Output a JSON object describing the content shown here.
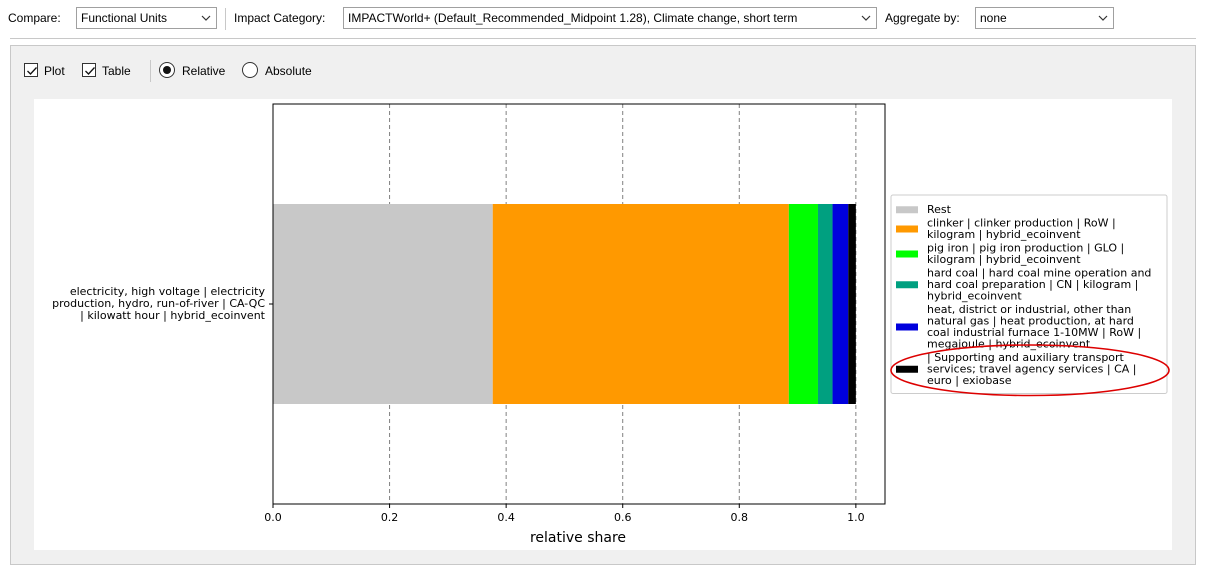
{
  "toolbar": {
    "compare_label": "Compare:",
    "compare_value": "Functional Units",
    "impact_label": "Impact Category:",
    "impact_value": "IMPACTWorld+ (Default_Recommended_Midpoint 1.28), Climate change, short term",
    "aggregate_label": "Aggregate by:",
    "aggregate_value": "none"
  },
  "options": {
    "plot_label": "Plot",
    "plot_checked": true,
    "table_label": "Table",
    "table_checked": true,
    "relative_label": "Relative",
    "absolute_label": "Absolute",
    "selected_mode": "Relative"
  },
  "chart_data": {
    "type": "bar",
    "orientation": "horizontal",
    "stacked": true,
    "xlabel": "relative share",
    "xlim": [
      0,
      1.05
    ],
    "xticks": [
      "0.0",
      "0.2",
      "0.4",
      "0.6",
      "0.8",
      "1.0"
    ],
    "grid": "vertical dashed",
    "legend_placement": "right",
    "category_label": [
      "electricity, high voltage | electricity",
      "production, hydro, run-of-river | CA-QC",
      "| kilowatt hour | hybrid_ecoinvent"
    ],
    "series": [
      {
        "name": "Rest",
        "value": 0.377,
        "color": "#c8c8c8",
        "legend_lines": [
          "Rest"
        ]
      },
      {
        "name": "clinker | clinker production | RoW | kilogram | hybrid_ecoinvent",
        "value": 0.508,
        "color": "#ff9900",
        "legend_lines": [
          "clinker | clinker production | RoW |",
          "kilogram | hybrid_ecoinvent"
        ]
      },
      {
        "name": "pig iron | pig iron production | GLO | kilogram | hybrid_ecoinvent",
        "value": 0.05,
        "color": "#00ff00",
        "legend_lines": [
          "pig iron | pig iron production | GLO |",
          "kilogram | hybrid_ecoinvent"
        ]
      },
      {
        "name": "hard coal | hard coal mine operation and hard coal preparation | CN | kilogram | hybrid_ecoinvent",
        "value": 0.025,
        "color": "#00a080",
        "legend_lines": [
          "hard coal | hard coal mine operation and",
          "hard coal preparation | CN | kilogram |",
          "hybrid_ecoinvent"
        ]
      },
      {
        "name": "heat, district or industrial, other than natural gas | heat production, at hard coal industrial furnace 1-10MW | RoW | megajoule | hybrid_ecoinvent",
        "value": 0.027,
        "color": "#0000dd",
        "legend_lines": [
          "heat, district or industrial, other than",
          "natural gas | heat production, at hard",
          "coal industrial furnace 1-10MW | RoW |",
          "megajoule | hybrid_ecoinvent"
        ]
      },
      {
        "name": "| Supporting and auxiliary transport services; travel agency services | CA | euro | exiobase",
        "value": 0.013,
        "color": "#000000",
        "legend_lines": [
          "| Supporting and auxiliary transport",
          "services; travel agency services | CA |",
          "euro | exiobase"
        ]
      }
    ],
    "annotation": "red ellipse highlighting last legend entry",
    "annotation_color": "#dd0000"
  }
}
